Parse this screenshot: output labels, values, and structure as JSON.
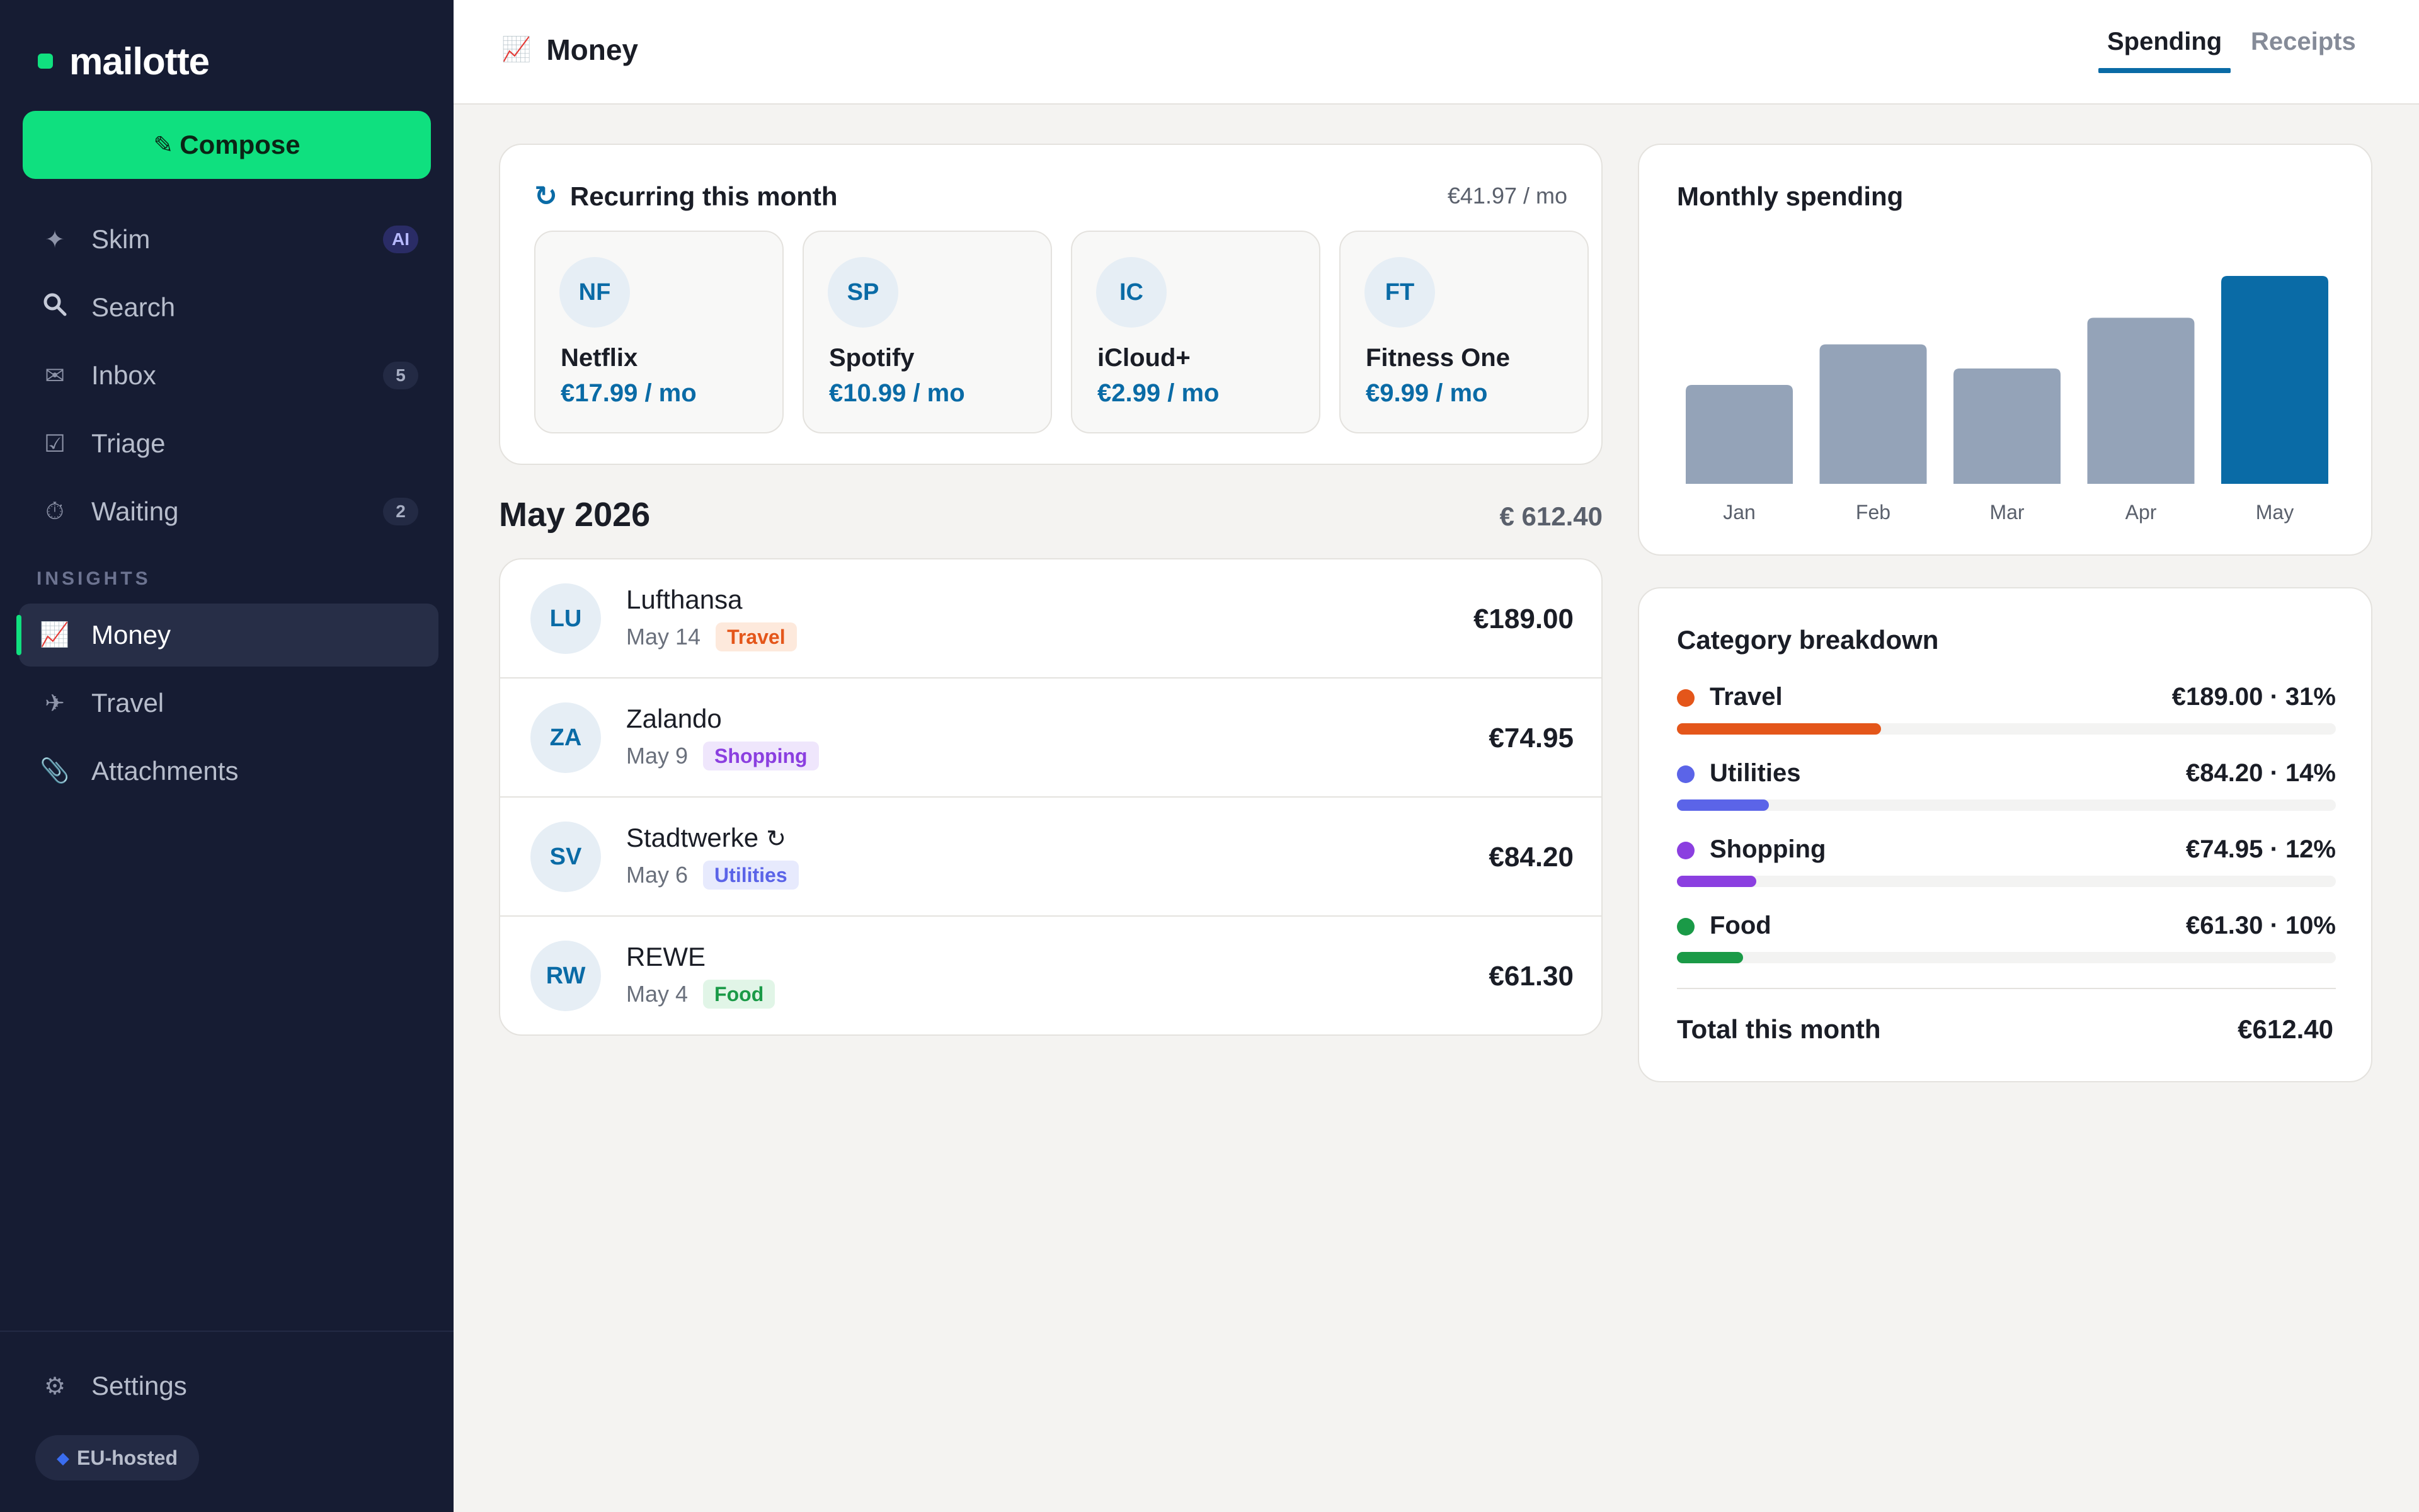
{
  "app": {
    "name": "mailotte"
  },
  "sidebar": {
    "compose_label": "Compose",
    "compose_icon": "pencil-icon",
    "items": [
      {
        "label": "Skim",
        "icon": "sparkle-icon",
        "badge": "AI"
      },
      {
        "label": "Search",
        "icon": "search-icon"
      },
      {
        "label": "Inbox",
        "icon": "envelope-icon",
        "badge": "5"
      },
      {
        "label": "Triage",
        "icon": "checkbox-icon"
      },
      {
        "label": "Waiting",
        "icon": "stopwatch-icon",
        "badge": "2"
      }
    ],
    "section_label": "INSIGHTS",
    "insights": [
      {
        "label": "Money",
        "icon": "chart-icon",
        "active": true
      },
      {
        "label": "Travel",
        "icon": "airplane-icon"
      },
      {
        "label": "Attachments",
        "icon": "paperclip-icon"
      }
    ],
    "settings_label": "Settings",
    "eu_badge": "EU-hosted"
  },
  "header": {
    "title": "Money",
    "tabs": [
      {
        "label": "Spending",
        "active": true
      },
      {
        "label": "Receipts",
        "active": false
      }
    ]
  },
  "recurring": {
    "title": "Recurring this month",
    "total": "€41.97 / mo",
    "subscriptions": [
      {
        "initials": "NF",
        "name": "Netflix",
        "price": "€17.99 / mo"
      },
      {
        "initials": "SP",
        "name": "Spotify",
        "price": "€10.99 / mo"
      },
      {
        "initials": "IC",
        "name": "iCloud+",
        "price": "€2.99 / mo"
      },
      {
        "initials": "FT",
        "name": "Fitness One",
        "price": "€9.99 / mo"
      }
    ]
  },
  "month": {
    "title": "May 2026",
    "total": "€ 612.40",
    "transactions": [
      {
        "initials": "LU",
        "name": "Lufthansa",
        "date": "May 14",
        "tag": "Travel",
        "amount": "€189.00",
        "recurring": false
      },
      {
        "initials": "ZA",
        "name": "Zalando",
        "date": "May 9",
        "tag": "Shopping",
        "amount": "€74.95",
        "recurring": false
      },
      {
        "initials": "SV",
        "name": "Stadtwerke",
        "date": "May 6",
        "tag": "Utilities",
        "amount": "€84.20",
        "recurring": true
      },
      {
        "initials": "RW",
        "name": "REWE",
        "date": "May 4",
        "tag": "Food",
        "amount": "€61.30",
        "recurring": false
      }
    ]
  },
  "chart_data": {
    "type": "bar",
    "title": "Monthly spending",
    "categories": [
      "Jan",
      "Feb",
      "Mar",
      "Apr",
      "May"
    ],
    "values": [
      390,
      550,
      455,
      655,
      820
    ],
    "ylim": [
      0,
      820
    ],
    "grid": false,
    "colors": {
      "default": "#94a3b8",
      "highlight": "#0a6ba6"
    },
    "highlight_index": 4
  },
  "breakdown": {
    "title": "Category breakdown",
    "items": [
      {
        "name": "Travel",
        "value": "€189.00 · 31%",
        "percent": 31,
        "color": "#e4561a"
      },
      {
        "name": "Utilities",
        "value": "€84.20 · 14%",
        "percent": 14,
        "color": "#5b64e8"
      },
      {
        "name": "Shopping",
        "value": "€74.95 · 12%",
        "percent": 12,
        "color": "#8b3fe0"
      },
      {
        "name": "Food",
        "value": "€61.30 · 10%",
        "percent": 10,
        "color": "#1a9a47"
      }
    ],
    "total_label": "Total this month",
    "total_value": "€612.40"
  }
}
